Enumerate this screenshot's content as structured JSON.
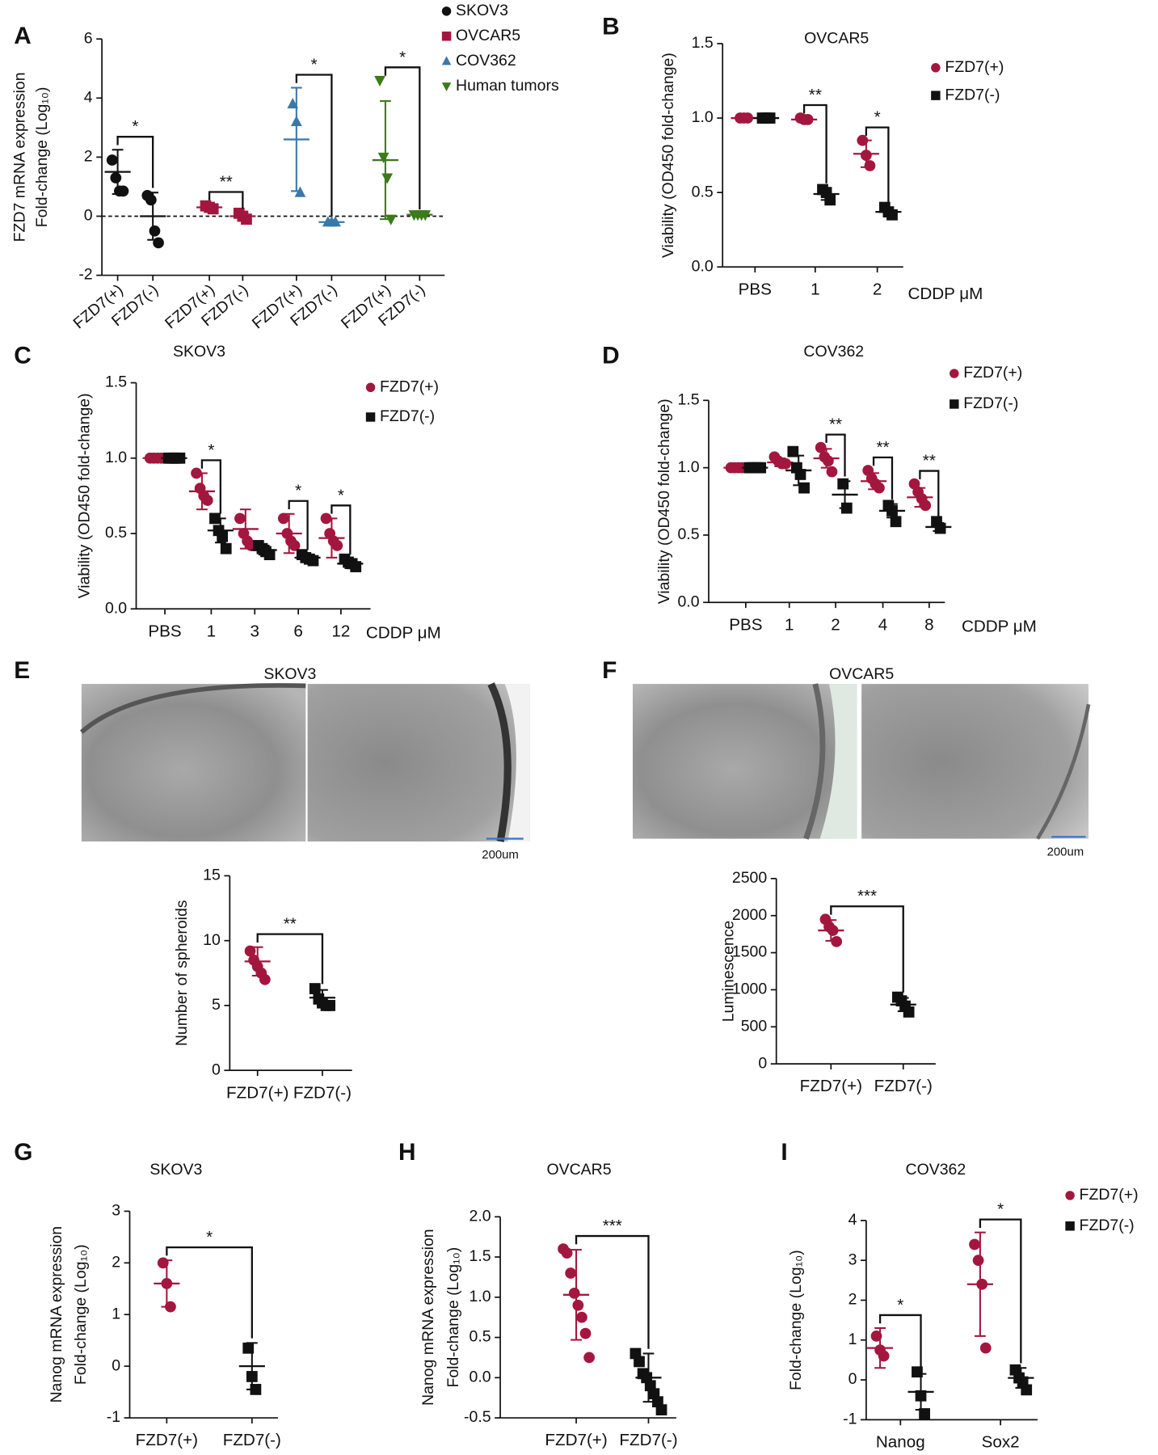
{
  "chart_data": [
    {
      "type": "dot",
      "panel": "A",
      "ylabel": [
        "FZD7 mRNA expression",
        "Fold-change (Log₁₀)"
      ],
      "categories": [
        "FZD7(+)",
        "FZD7(-)",
        "FZD7(+)",
        "FZD7(-)",
        "FZD7(+)",
        "FZD7(-)",
        "FZD7(+)",
        "FZD7(-)"
      ],
      "ylim": [
        -2,
        6
      ],
      "yticks": [
        -2,
        0,
        2,
        4,
        6
      ],
      "zero_line": true,
      "legend": true,
      "series": [
        {
          "name": "SKOV3",
          "color": "#111111",
          "marker": "circle"
        },
        {
          "name": "OVCAR5",
          "color": "#a3173f",
          "marker": "square"
        },
        {
          "name": "COV362",
          "color": "#3a78a8",
          "marker": "triangle-up"
        },
        {
          "name": "Human tumors",
          "color": "#3c7a1a",
          "marker": "triangle-down"
        }
      ],
      "groups": [
        {
          "series": 0,
          "category": 0,
          "points": [
            1.9,
            1.3,
            0.85,
            0.85
          ],
          "mean": 1.5,
          "sd": 0.75
        },
        {
          "series": 0,
          "category": 1,
          "points": [
            0.7,
            0.55,
            -0.5,
            -0.9
          ],
          "mean": 0.0,
          "sd": 0.8
        },
        {
          "series": 1,
          "category": 2,
          "points": [
            0.35,
            0.3,
            0.25
          ],
          "mean": 0.3,
          "sd": 0.08
        },
        {
          "series": 1,
          "category": 3,
          "points": [
            0.1,
            0.0,
            -0.1
          ],
          "mean": 0.0,
          "sd": 0.1
        },
        {
          "series": 2,
          "category": 4,
          "points": [
            3.8,
            3.2,
            0.8
          ],
          "mean": 2.6,
          "sd": 1.75
        },
        {
          "series": 2,
          "category": 5,
          "points": [
            -0.2,
            -0.2,
            -0.2
          ],
          "mean": -0.2,
          "sd": 0.05
        },
        {
          "series": 3,
          "category": 6,
          "points": [
            4.6,
            2.0,
            1.3,
            -0.1
          ],
          "mean": 1.9,
          "sd": 2.0
        },
        {
          "series": 3,
          "category": 7,
          "points": [
            0.05,
            0.05,
            0.05,
            0.05
          ],
          "mean": 0.05,
          "sd": 0.02
        }
      ],
      "brackets": [
        {
          "label": "*",
          "groups": [
            0,
            1
          ]
        },
        {
          "label": "**",
          "groups": [
            2,
            3
          ]
        },
        {
          "label": "*",
          "groups": [
            4,
            5
          ]
        },
        {
          "label": "*",
          "groups": [
            6,
            7
          ]
        }
      ]
    },
    {
      "type": "dot",
      "panel": "B",
      "title": "OVCAR5",
      "ylabel": [
        "Viability (OD450 fold-change)"
      ],
      "xlabel": "CDDP μM",
      "categories": [
        "PBS",
        "1",
        "2"
      ],
      "ylim": [
        0,
        1.5
      ],
      "yticks": [
        {
          "value": 0,
          "label": "0.0"
        },
        0.5,
        {
          "value": 1,
          "label": "1.0"
        },
        1.5
      ],
      "legend": true,
      "grouped": true,
      "series": [
        {
          "name": "FZD7(+)",
          "color": "#a3173f",
          "marker": "circle"
        },
        {
          "name": "FZD7(-)",
          "color": "#111111",
          "marker": "square"
        }
      ],
      "groups": [
        {
          "series": 0,
          "category": 0,
          "points": [
            1,
            1,
            1
          ],
          "mean": 1,
          "sd": 0
        },
        {
          "series": 1,
          "category": 0,
          "points": [
            1,
            1,
            1
          ],
          "mean": 1,
          "sd": 0
        },
        {
          "series": 0,
          "category": 1,
          "points": [
            1.0,
            0.99,
            0.99
          ],
          "mean": 0.99,
          "sd": 0.01
        },
        {
          "series": 1,
          "category": 1,
          "points": [
            0.52,
            0.5,
            0.45
          ],
          "mean": 0.49,
          "sd": 0.04
        },
        {
          "series": 0,
          "category": 2,
          "points": [
            0.85,
            0.75,
            0.68
          ],
          "mean": 0.76,
          "sd": 0.09
        },
        {
          "series": 1,
          "category": 2,
          "points": [
            0.4,
            0.37,
            0.35
          ],
          "mean": 0.37,
          "sd": 0.03
        }
      ],
      "brackets": [
        {
          "label": "**",
          "groups": [
            2,
            3
          ]
        },
        {
          "label": "*",
          "groups": [
            4,
            5
          ]
        }
      ]
    },
    {
      "type": "dot",
      "panel": "C",
      "title": "SKOV3",
      "ylabel": [
        "Viability (OD450 fold-change)"
      ],
      "xlabel": "CDDP μM",
      "categories": [
        "PBS",
        "1",
        "3",
        "6",
        "12"
      ],
      "ylim": [
        0,
        1.5
      ],
      "yticks": [
        {
          "value": 0,
          "label": "0.0"
        },
        0.5,
        {
          "value": 1,
          "label": "1.0"
        },
        1.5
      ],
      "legend": true,
      "grouped": true,
      "series": [
        {
          "name": "FZD7(+)",
          "color": "#a3173f",
          "marker": "circle"
        },
        {
          "name": "FZD7(-)",
          "color": "#111111",
          "marker": "square"
        }
      ],
      "groups": [
        {
          "series": 0,
          "category": 0,
          "points": [
            1,
            1,
            1,
            1
          ],
          "mean": 1,
          "sd": 0
        },
        {
          "series": 1,
          "category": 0,
          "points": [
            1,
            1,
            1,
            1
          ],
          "mean": 1,
          "sd": 0
        },
        {
          "series": 0,
          "category": 1,
          "points": [
            0.9,
            0.8,
            0.75,
            0.72
          ],
          "mean": 0.78,
          "sd": 0.12
        },
        {
          "series": 1,
          "category": 1,
          "points": [
            0.6,
            0.52,
            0.48,
            0.4
          ],
          "mean": 0.52,
          "sd": 0.08
        },
        {
          "series": 0,
          "category": 2,
          "points": [
            0.6,
            0.5,
            0.45,
            0.42
          ],
          "mean": 0.53,
          "sd": 0.13
        },
        {
          "series": 1,
          "category": 2,
          "points": [
            0.42,
            0.4,
            0.38,
            0.36
          ],
          "mean": 0.39,
          "sd": 0.03
        },
        {
          "series": 0,
          "category": 3,
          "points": [
            0.6,
            0.5,
            0.45,
            0.42
          ],
          "mean": 0.5,
          "sd": 0.13
        },
        {
          "series": 1,
          "category": 3,
          "points": [
            0.36,
            0.34,
            0.33,
            0.32
          ],
          "mean": 0.34,
          "sd": 0.02
        },
        {
          "series": 0,
          "category": 4,
          "points": [
            0.6,
            0.5,
            0.45,
            0.42
          ],
          "mean": 0.47,
          "sd": 0.13
        },
        {
          "series": 1,
          "category": 4,
          "points": [
            0.33,
            0.31,
            0.3,
            0.28
          ],
          "mean": 0.3,
          "sd": 0.03
        }
      ],
      "brackets": [
        {
          "label": "*",
          "groups": [
            2,
            3
          ]
        },
        {
          "label": "*",
          "groups": [
            6,
            7
          ]
        },
        {
          "label": "*",
          "groups": [
            8,
            9
          ]
        }
      ]
    },
    {
      "type": "dot",
      "panel": "D",
      "title": "COV362",
      "ylabel": [
        "Viability (OD450 fold-change)"
      ],
      "xlabel": "CDDP μM",
      "categories": [
        "PBS",
        "1",
        "2",
        "4",
        "8"
      ],
      "ylim": [
        0,
        1.5
      ],
      "yticks": [
        {
          "value": 0,
          "label": "0.0"
        },
        0.5,
        {
          "value": 1,
          "label": "1.0"
        },
        1.5
      ],
      "legend": true,
      "grouped": true,
      "series": [
        {
          "name": "FZD7(+)",
          "color": "#a3173f",
          "marker": "circle"
        },
        {
          "name": "FZD7(-)",
          "color": "#111111",
          "marker": "square"
        }
      ],
      "groups": [
        {
          "series": 0,
          "category": 0,
          "points": [
            1,
            1,
            1,
            1
          ],
          "mean": 1,
          "sd": 0
        },
        {
          "series": 1,
          "category": 0,
          "points": [
            1,
            1,
            1,
            1
          ],
          "mean": 1,
          "sd": 0
        },
        {
          "series": 0,
          "category": 1,
          "points": [
            1.08,
            1.05,
            1.03,
            1.03
          ],
          "mean": 1.04,
          "sd": 0.03
        },
        {
          "series": 1,
          "category": 1,
          "points": [
            1.12,
            1.0,
            0.95,
            0.85
          ],
          "mean": 0.98,
          "sd": 0.11
        },
        {
          "series": 0,
          "category": 2,
          "points": [
            1.15,
            1.08,
            1.05,
            0.97
          ],
          "mean": 1.07,
          "sd": 0.07
        },
        {
          "series": 1,
          "category": 2,
          "points": [
            0.88,
            0.7
          ],
          "mean": 0.8,
          "sd": 0.1
        },
        {
          "series": 0,
          "category": 3,
          "points": [
            0.98,
            0.92,
            0.88,
            0.85
          ],
          "mean": 0.9,
          "sd": 0.06
        },
        {
          "series": 1,
          "category": 3,
          "points": [
            0.72,
            0.68,
            0.6
          ],
          "mean": 0.68,
          "sd": 0.05
        },
        {
          "series": 0,
          "category": 4,
          "points": [
            0.88,
            0.82,
            0.77,
            0.72
          ],
          "mean": 0.78,
          "sd": 0.07
        },
        {
          "series": 1,
          "category": 4,
          "points": [
            0.6,
            0.55
          ],
          "mean": 0.56,
          "sd": 0.03
        }
      ],
      "brackets": [
        {
          "label": "**",
          "groups": [
            4,
            5
          ]
        },
        {
          "label": "**",
          "groups": [
            6,
            7
          ]
        },
        {
          "label": "**",
          "groups": [
            8,
            9
          ]
        }
      ]
    },
    {
      "type": "dot",
      "ylabel": [
        "Number of spheroids"
      ],
      "categories": [
        "FZD7(+)",
        "FZD7(-)"
      ],
      "ylim": [
        0,
        15
      ],
      "yticks": [
        0,
        5,
        10,
        15
      ],
      "series": [
        {
          "color": "#a3173f",
          "marker": "circle"
        },
        {
          "color": "#111111",
          "marker": "square"
        }
      ],
      "groups": [
        {
          "series": 0,
          "category": 0,
          "points": [
            9.2,
            8.5,
            8.0,
            7.5,
            7.0
          ],
          "mean": 8.4,
          "sd": 1.1
        },
        {
          "series": 1,
          "category": 1,
          "points": [
            6.3,
            5.5,
            5.2,
            5.0,
            5.0
          ],
          "mean": 5.6,
          "sd": 0.6
        }
      ],
      "brackets": [
        {
          "label": "**",
          "groups": [
            0,
            1
          ]
        }
      ]
    },
    {
      "type": "dot",
      "ylabel": [
        "Luminescence"
      ],
      "categories": [
        "FZD7(+)",
        "FZD7(-)"
      ],
      "ylim": [
        0,
        2500
      ],
      "yticks": [
        0,
        500,
        1000,
        1500,
        2000,
        2500
      ],
      "series": [
        {
          "color": "#a3173f",
          "marker": "circle"
        },
        {
          "color": "#111111",
          "marker": "square"
        }
      ],
      "groups": [
        {
          "series": 0,
          "category": 0,
          "points": [
            1950,
            1850,
            1800,
            1650
          ],
          "mean": 1800,
          "sd": 140
        },
        {
          "series": 1,
          "category": 1,
          "points": [
            900,
            850,
            780,
            700
          ],
          "mean": 800,
          "sd": 90
        }
      ],
      "brackets": [
        {
          "label": "***",
          "groups": [
            0,
            1
          ]
        }
      ]
    },
    {
      "type": "dot",
      "panel": "G",
      "title": "SKOV3",
      "ylabel": [
        "Nanog mRNA expression",
        "Fold-change (Log₁₀)"
      ],
      "categories": [
        "FZD7(+)",
        "FZD7(-)"
      ],
      "ylim": [
        -1,
        3
      ],
      "yticks": [
        -1,
        0,
        1,
        2,
        3
      ],
      "series": [
        {
          "color": "#a3173f",
          "marker": "circle"
        },
        {
          "color": "#111111",
          "marker": "square"
        }
      ],
      "groups": [
        {
          "series": 0,
          "category": 0,
          "points": [
            2.0,
            1.6,
            1.15
          ],
          "mean": 1.6,
          "sd": 0.45
        },
        {
          "series": 1,
          "category": 1,
          "points": [
            0.35,
            -0.2,
            -0.45
          ],
          "mean": 0,
          "sd": 0.45
        }
      ],
      "brackets": [
        {
          "label": "*",
          "groups": [
            0,
            1
          ]
        }
      ]
    },
    {
      "type": "dot",
      "panel": "H",
      "title": "OVCAR5",
      "ylabel": [
        "Nanog mRNA expression",
        "Fold-change (Log₁₀)"
      ],
      "categories": [
        "FZD7(+)",
        "FZD7(-)"
      ],
      "ylim": [
        -0.5,
        2
      ],
      "yticks": [
        -0.5,
        {
          "value": 0,
          "label": "0.0"
        },
        0.5,
        {
          "value": 1,
          "label": "1.0"
        },
        1.5,
        {
          "value": 2,
          "label": "2.0"
        }
      ],
      "series": [
        {
          "color": "#a3173f",
          "marker": "circle"
        },
        {
          "color": "#111111",
          "marker": "square"
        }
      ],
      "groups": [
        {
          "series": 0,
          "category": 0,
          "points": [
            1.6,
            1.55,
            1.3,
            1.05,
            0.9,
            0.75,
            0.55,
            0.25
          ],
          "mean": 1.03,
          "sd": 0.56
        },
        {
          "series": 1,
          "category": 1,
          "points": [
            0.3,
            0.2,
            0.05,
            0.0,
            -0.1,
            -0.2,
            -0.3,
            -0.4
          ],
          "mean": 0,
          "sd": 0.3
        }
      ],
      "brackets": [
        {
          "label": "***",
          "groups": [
            0,
            1
          ]
        }
      ]
    },
    {
      "type": "dot",
      "panel": "I",
      "title": "COV362",
      "ylabel": [
        "Fold-change (Log₁₀)"
      ],
      "categories": [
        "Nanog",
        "Sox2"
      ],
      "ylim": [
        -1,
        4
      ],
      "yticks": [
        -1,
        0,
        1,
        2,
        3,
        4
      ],
      "legend": true,
      "grouped": true,
      "series": [
        {
          "name": "FZD7(+)",
          "color": "#a3173f",
          "marker": "circle"
        },
        {
          "name": "FZD7(-)",
          "color": "#111111",
          "marker": "square"
        }
      ],
      "groups": [
        {
          "series": 0,
          "category": 0,
          "points": [
            1.1,
            0.75,
            0.6
          ],
          "mean": 0.8,
          "sd": 0.5
        },
        {
          "series": 1,
          "category": 0,
          "points": [
            0.2,
            -0.4,
            -0.85
          ],
          "mean": -0.3,
          "sd": 0.45
        },
        {
          "series": 0,
          "category": 1,
          "points": [
            3.4,
            3.0,
            2.4,
            0.8
          ],
          "mean": 2.4,
          "sd": 1.3
        },
        {
          "series": 1,
          "category": 1,
          "points": [
            0.25,
            0.05,
            -0.05,
            -0.25
          ],
          "mean": 0.05,
          "sd": 0.25
        }
      ],
      "brackets": [
        {
          "label": "*",
          "groups": [
            0,
            1
          ]
        },
        {
          "label": "*",
          "groups": [
            2,
            3
          ]
        }
      ]
    }
  ],
  "images": [
    {
      "panel": "E",
      "title": "SKOV3",
      "scale_label": "200um"
    },
    {
      "panel": "F",
      "title": "OVCAR5",
      "scale_label": "200um"
    }
  ]
}
